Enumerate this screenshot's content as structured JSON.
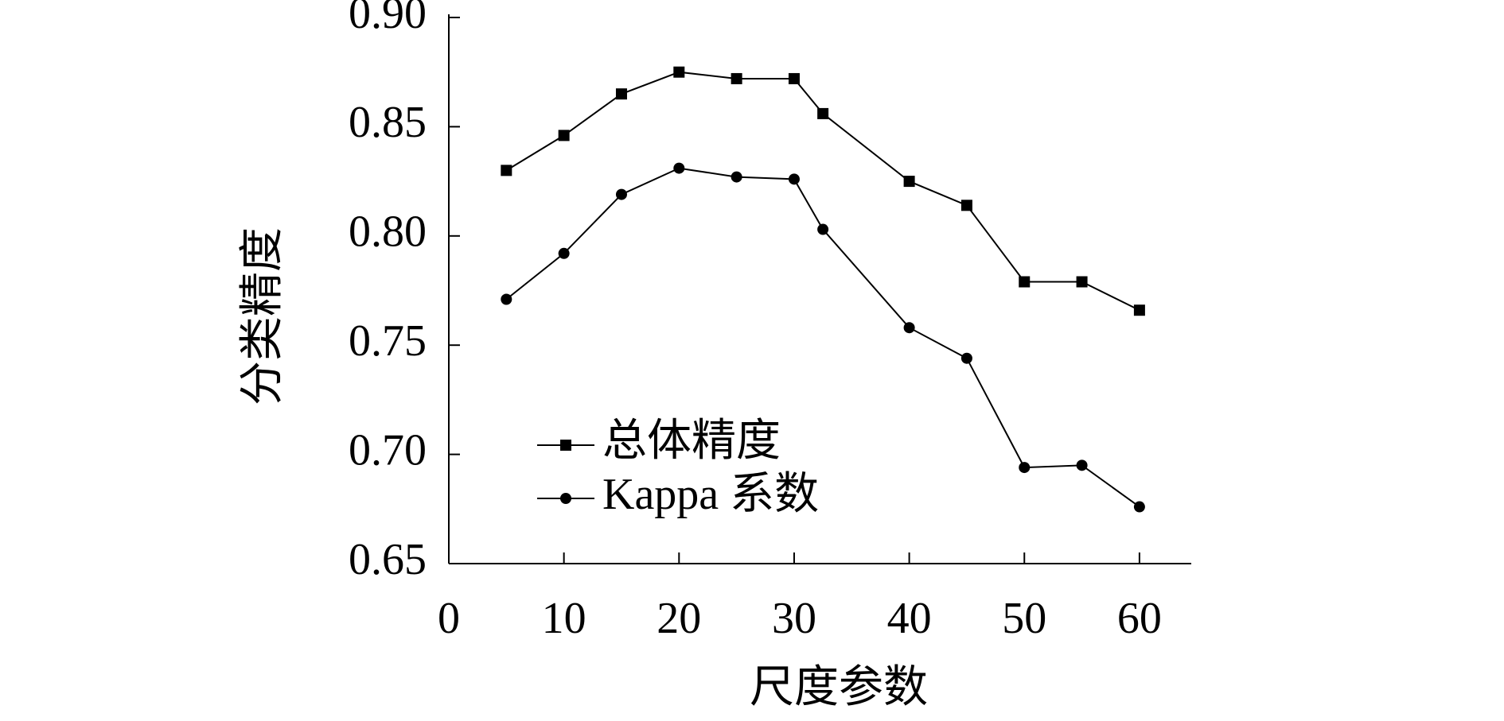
{
  "chart_data": {
    "type": "line",
    "x_label": "尺度参数",
    "y_label": "分类精度",
    "x": [
      5,
      10,
      15,
      20,
      25,
      30,
      32.5,
      40,
      45,
      50,
      55,
      60
    ],
    "series": [
      {
        "name": "总体精度",
        "color": "#000000",
        "marker": "square",
        "values": [
          0.83,
          0.846,
          0.865,
          0.875,
          0.872,
          0.872,
          0.856,
          0.825,
          0.814,
          0.779,
          0.779,
          0.766
        ]
      },
      {
        "name": "Kappa 系数",
        "color": "#000000",
        "marker": "circle",
        "values": [
          0.771,
          0.792,
          0.819,
          0.831,
          0.827,
          0.826,
          0.803,
          0.758,
          0.744,
          0.694,
          0.695,
          0.676
        ]
      }
    ],
    "xlim": [
      0,
      64.5
    ],
    "xticks": [
      0,
      10,
      20,
      30,
      40,
      50,
      60
    ],
    "ylim": [
      0.65,
      0.9
    ],
    "yticks": [
      0.65,
      {
        "value": 0.7,
        "label": "0.70"
      },
      0.75,
      {
        "value": 0.8,
        "label": "0.80"
      },
      0.85,
      {
        "value": 0.9,
        "label": "0.90"
      }
    ],
    "grid": false,
    "legend": "lower left"
  }
}
